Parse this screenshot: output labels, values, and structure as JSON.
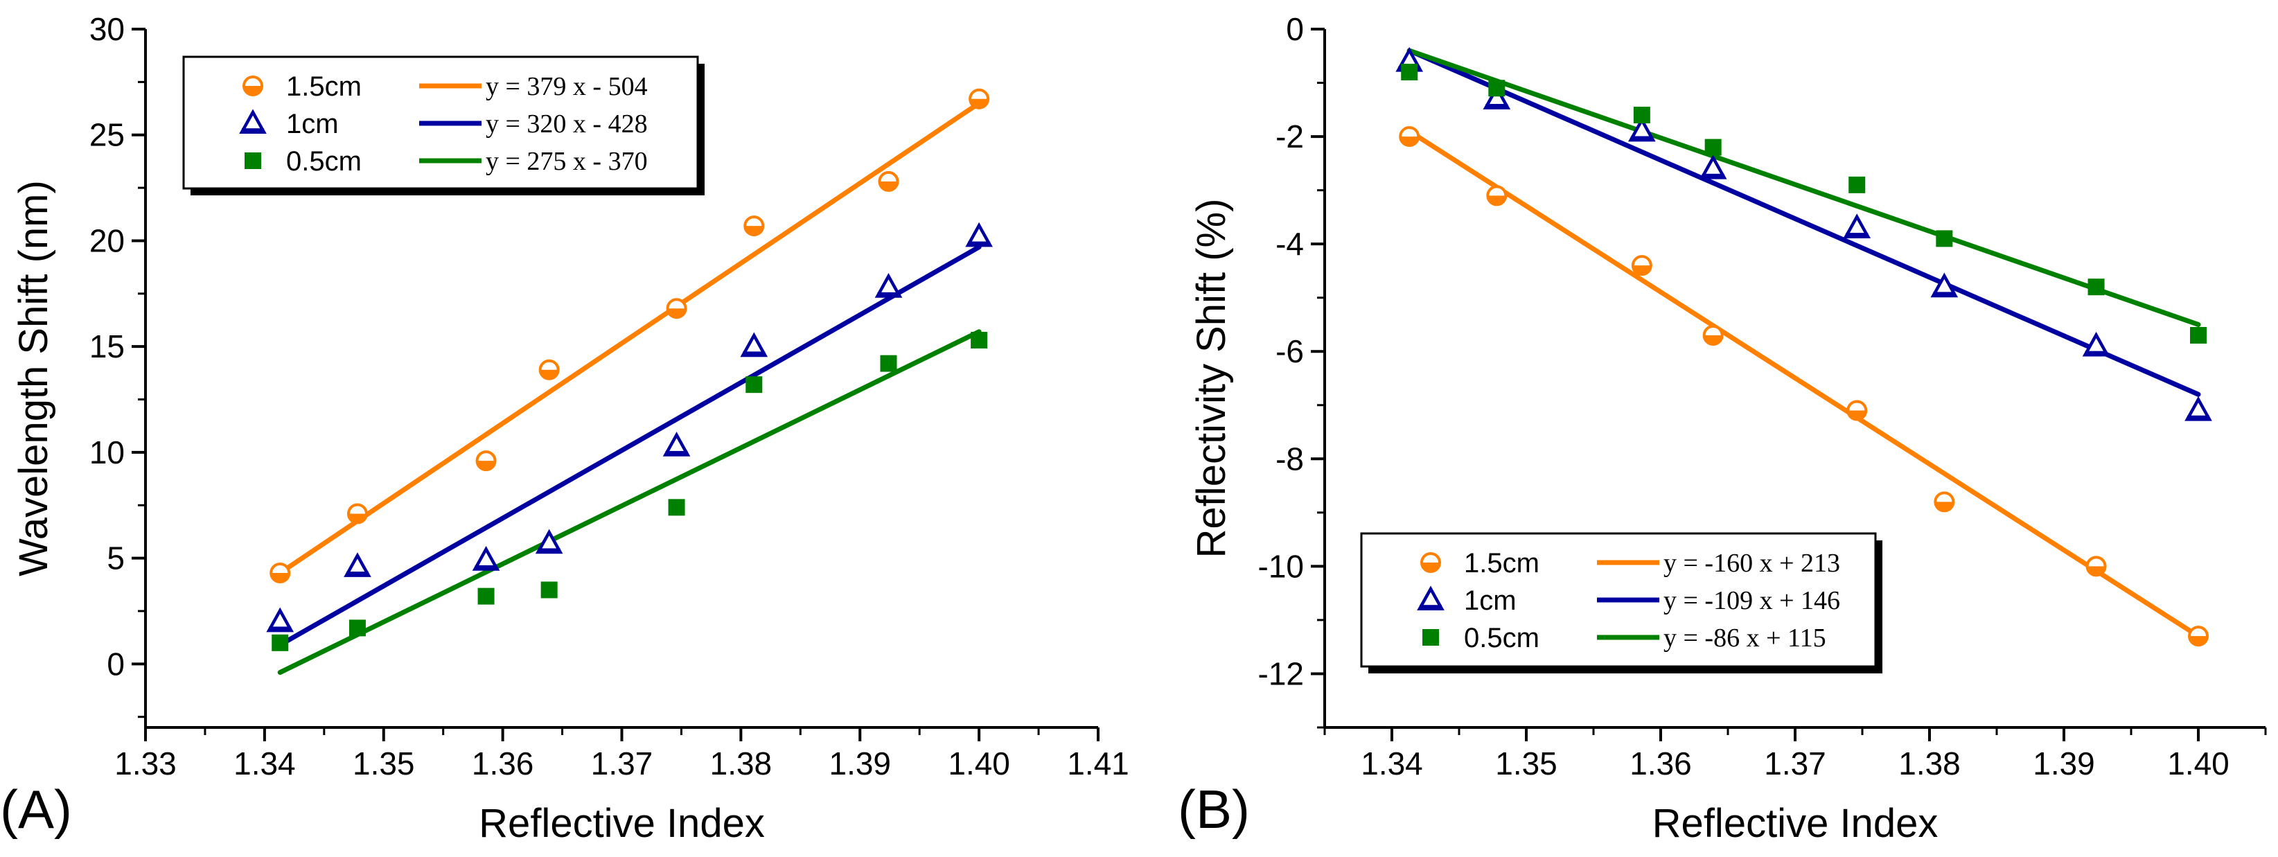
{
  "chart_data": [
    {
      "type": "scatter",
      "panel_label": "(A)",
      "xlabel": "Reflective Index",
      "ylabel": "Wavelength Shift (nm)",
      "xlim": [
        1.33,
        1.41
      ],
      "ylim": [
        -3,
        30
      ],
      "xticks": [
        1.33,
        1.34,
        1.35,
        1.36,
        1.37,
        1.38,
        1.39,
        1.4,
        1.41
      ],
      "xtick_labels": [
        "1.33",
        "1.34",
        "1.35",
        "1.36",
        "1.37",
        "1.38",
        "1.39",
        "1.40",
        "1.41"
      ],
      "yticks": [
        0,
        5,
        10,
        15,
        20,
        25,
        30
      ],
      "ytick_labels": [
        "0",
        "5",
        "10",
        "15",
        "20",
        "25",
        "30"
      ],
      "legend_position": "top-left",
      "series": [
        {
          "name": "1.5cm",
          "marker": "half-circle",
          "color": "#ff8000",
          "x": [
            1.3413,
            1.3478,
            1.3586,
            1.3639,
            1.3746,
            1.3811,
            1.3924,
            1.4
          ],
          "y": [
            4.3,
            7.1,
            9.6,
            13.9,
            16.8,
            20.7,
            22.8,
            26.7
          ],
          "fit_label": "y = 379 x - 504",
          "fit_slope": 379,
          "fit_intercept": -504,
          "fit_x": [
            1.3413,
            1.4
          ],
          "fit_y": [
            4.3,
            26.5
          ]
        },
        {
          "name": "1cm",
          "marker": "triangle",
          "color": "#0000a0",
          "x": [
            1.3413,
            1.3478,
            1.3586,
            1.3639,
            1.3746,
            1.3811,
            1.3924,
            1.4
          ],
          "y": [
            2.0,
            4.6,
            4.9,
            5.7,
            10.3,
            15.0,
            17.8,
            20.2
          ],
          "fit_label": "y = 320 x - 428",
          "fit_slope": 320,
          "fit_intercept": -428,
          "fit_x": [
            1.3413,
            1.4
          ],
          "fit_y": [
            0.9,
            19.7
          ]
        },
        {
          "name": "0.5cm",
          "marker": "square",
          "color": "#008000",
          "x": [
            1.3413,
            1.3478,
            1.3586,
            1.3639,
            1.3746,
            1.3811,
            1.3924,
            1.4
          ],
          "y": [
            1.0,
            1.7,
            3.2,
            3.5,
            7.4,
            13.2,
            14.2,
            15.3
          ],
          "fit_label": "y = 275 x - 370",
          "fit_slope": 275,
          "fit_intercept": -370,
          "fit_x": [
            1.3413,
            1.4
          ],
          "fit_y": [
            -0.4,
            15.7
          ]
        }
      ]
    },
    {
      "type": "scatter",
      "panel_label": "(B)",
      "xlabel": "Reflective Index",
      "ylabel": "Reflectivity Shift (%)",
      "xlim": [
        1.335,
        1.405
      ],
      "ylim": [
        -13,
        0
      ],
      "xticks": [
        1.34,
        1.35,
        1.36,
        1.37,
        1.38,
        1.39,
        1.4
      ],
      "xtick_labels": [
        "1.34",
        "1.35",
        "1.36",
        "1.37",
        "1.38",
        "1.39",
        "1.40"
      ],
      "yticks": [
        0,
        -2,
        -4,
        -6,
        -8,
        -10,
        -12
      ],
      "ytick_labels": [
        "0",
        "-2",
        "-4",
        "-6",
        "-8",
        "-10",
        "-12"
      ],
      "legend_position": "bottom-left",
      "series": [
        {
          "name": "1.5cm",
          "marker": "half-circle",
          "color": "#ff8000",
          "x": [
            1.3413,
            1.3478,
            1.3586,
            1.3639,
            1.3746,
            1.3811,
            1.3924,
            1.4
          ],
          "y": [
            -2.0,
            -3.1,
            -4.4,
            -5.7,
            -7.1,
            -8.8,
            -10.0,
            -11.3
          ],
          "fit_label": "y = -160 x + 213",
          "fit_slope": -160,
          "fit_intercept": 213,
          "fit_x": [
            1.3413,
            1.4
          ],
          "fit_y": [
            -1.9,
            -11.3
          ]
        },
        {
          "name": "1cm",
          "marker": "triangle",
          "color": "#0000a0",
          "x": [
            1.3413,
            1.3478,
            1.3586,
            1.3639,
            1.3746,
            1.3811,
            1.3924,
            1.4
          ],
          "y": [
            -0.6,
            -1.3,
            -1.9,
            -2.6,
            -3.7,
            -4.8,
            -5.9,
            -7.1
          ],
          "fit_label": "y = -109 x + 146",
          "fit_slope": -109,
          "fit_intercept": 146,
          "fit_x": [
            1.3413,
            1.4
          ],
          "fit_y": [
            -0.4,
            -6.8
          ]
        },
        {
          "name": "0.5cm",
          "marker": "square",
          "color": "#008000",
          "x": [
            1.3413,
            1.3478,
            1.3586,
            1.3639,
            1.3746,
            1.3811,
            1.3924,
            1.4
          ],
          "y": [
            -0.8,
            -1.1,
            -1.6,
            -2.2,
            -2.9,
            -3.9,
            -4.8,
            -5.7
          ],
          "fit_label": "y = -86 x + 115",
          "fit_slope": -86,
          "fit_intercept": 115,
          "fit_x": [
            1.3413,
            1.4
          ],
          "fit_y": [
            -0.4,
            -5.5
          ]
        }
      ]
    }
  ]
}
